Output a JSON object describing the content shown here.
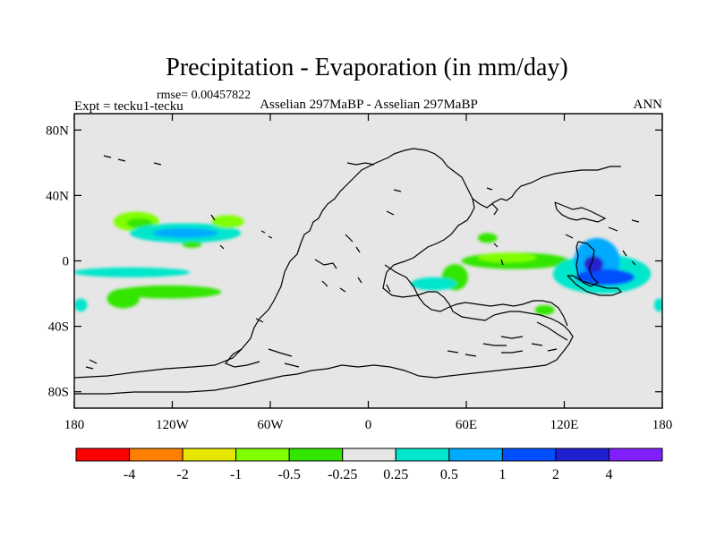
{
  "chart_data": {
    "type": "heatmap",
    "title": "Precipitation - Evaporation (in mm/day)",
    "rmse_label": "rmse= 0.00457822",
    "left_label": "Expt = tecku1-tecku",
    "center_label": "Asselian 297MaBP - Asselian 297MaBP",
    "right_label": "ANN",
    "x_range": [
      -180,
      180
    ],
    "y_range": [
      -90,
      90
    ],
    "x_ticks": [
      {
        "value": -180,
        "label": "180"
      },
      {
        "value": -120,
        "label": "120W"
      },
      {
        "value": -60,
        "label": "60W"
      },
      {
        "value": 0,
        "label": "0"
      },
      {
        "value": 60,
        "label": "60E"
      },
      {
        "value": 120,
        "label": "120E"
      },
      {
        "value": 180,
        "label": "180"
      }
    ],
    "y_ticks": [
      {
        "value": 80,
        "label": "80N"
      },
      {
        "value": 40,
        "label": "40N"
      },
      {
        "value": 0,
        "label": "0"
      },
      {
        "value": -40,
        "label": "40S"
      },
      {
        "value": -80,
        "label": "80S"
      }
    ],
    "background_color": "#e6e6e6",
    "colorbar": {
      "colors": [
        "#ff0000",
        "#ff8000",
        "#e6e600",
        "#80ff00",
        "#33e600",
        "#e6e6e6",
        "#00e6cc",
        "#00aaff",
        "#0050ff",
        "#2020d0",
        "#8020ff"
      ],
      "labels": [
        "-4",
        "-2",
        "-1",
        "-0.5",
        "-0.25",
        "0.25",
        "0.5",
        "1",
        "2",
        "4"
      ]
    },
    "anomalies": [
      {
        "lon": -142,
        "lat": 24,
        "rlon": 14,
        "rlat": 6,
        "level": 3
      },
      {
        "lon": -140,
        "lat": 23,
        "rlon": 8,
        "rlat": 3,
        "level": 4
      },
      {
        "lon": -112,
        "lat": 17,
        "rlon": 34,
        "rlat": 6,
        "level": 6
      },
      {
        "lon": -112,
        "lat": 17,
        "rlon": 20,
        "rlat": 3,
        "level": 7
      },
      {
        "lon": -86,
        "lat": 24,
        "rlon": 10,
        "rlat": 4,
        "level": 3
      },
      {
        "lon": -108,
        "lat": 10,
        "rlon": 6,
        "rlat": 2,
        "level": 4
      },
      {
        "lon": -145,
        "lat": -7,
        "rlon": 36,
        "rlat": 3,
        "level": 6
      },
      {
        "lon": -122,
        "lat": -19,
        "rlon": 32,
        "rlat": 4,
        "level": 4
      },
      {
        "lon": -150,
        "lat": -23,
        "rlon": 10,
        "rlat": 6,
        "level": 4
      },
      {
        "lon": -176,
        "lat": -27,
        "rlon": 4,
        "rlat": 4,
        "level": 6
      },
      {
        "lon": 90,
        "lat": 0,
        "rlon": 33,
        "rlat": 5,
        "level": 4
      },
      {
        "lon": 85,
        "lat": 2,
        "rlon": 18,
        "rlat": 3,
        "level": 3
      },
      {
        "lon": 73,
        "lat": 14,
        "rlon": 6,
        "rlat": 3,
        "level": 4
      },
      {
        "lon": 53,
        "lat": -10,
        "rlon": 8,
        "rlat": 8,
        "level": 4
      },
      {
        "lon": 40,
        "lat": -14,
        "rlon": 14,
        "rlat": 4,
        "level": 6
      },
      {
        "lon": 108,
        "lat": -30,
        "rlon": 6,
        "rlat": 3,
        "level": 4
      },
      {
        "lon": 143,
        "lat": -8,
        "rlon": 30,
        "rlat": 12,
        "level": 6
      },
      {
        "lon": 140,
        "lat": 0,
        "rlon": 14,
        "rlat": 14,
        "level": 7
      },
      {
        "lon": 145,
        "lat": -10,
        "rlon": 18,
        "rlat": 5,
        "level": 8
      },
      {
        "lon": 138,
        "lat": -2,
        "rlon": 6,
        "rlat": 5,
        "level": 9
      },
      {
        "lon": 178,
        "lat": -27,
        "rlon": 3,
        "rlat": 4,
        "level": 6
      }
    ]
  }
}
